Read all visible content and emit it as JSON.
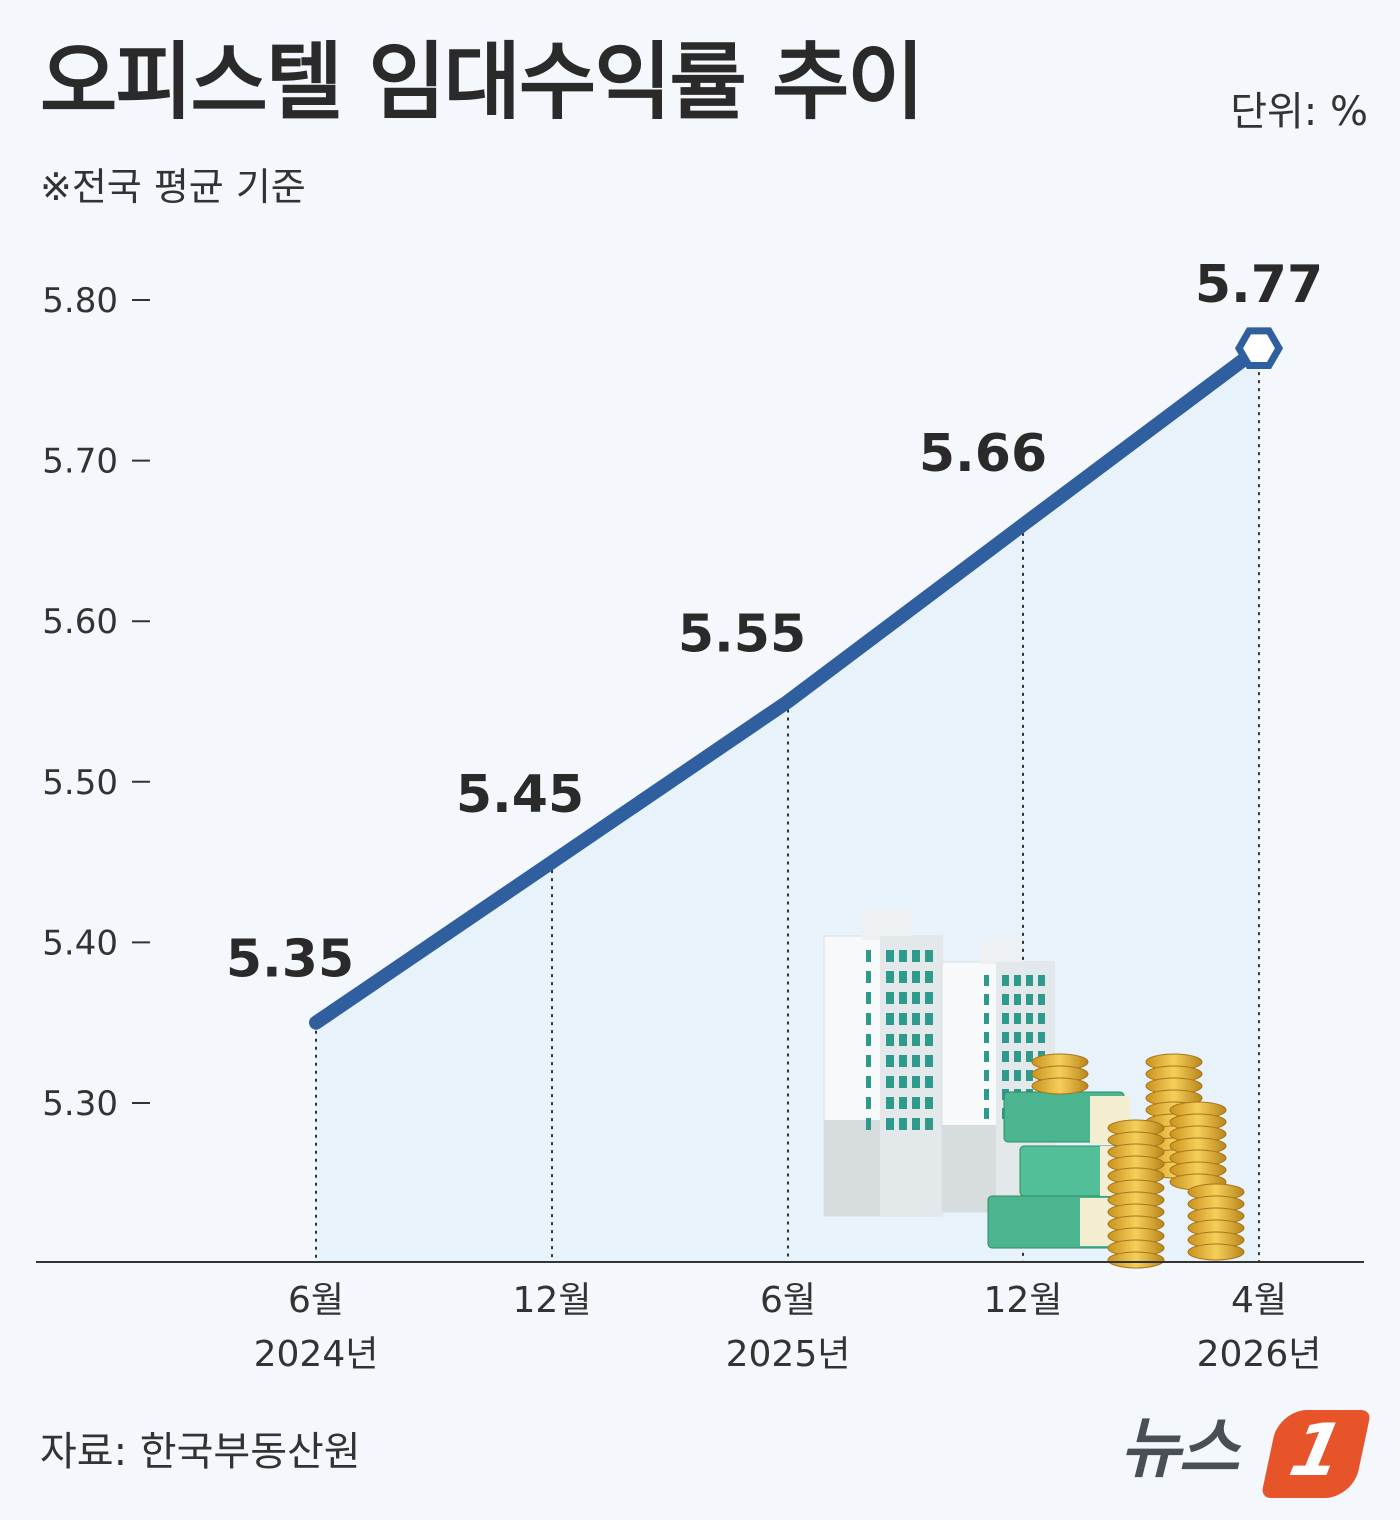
{
  "title": "오피스텔 임대수익률 추이",
  "subtitle": "※전국 평균 기준",
  "unit": "단위: %",
  "source": "자료: 한국부동산원",
  "logo": {
    "text": "뉴스",
    "badge": "1"
  },
  "colors": {
    "line": "#2f5f9f",
    "fill": "#e6f1fb",
    "background": "#f4f8fd",
    "axis": "#333333",
    "logo_accent": "#e8542a"
  },
  "chart_data": {
    "type": "line",
    "title": "오피스텔 임대수익률 추이",
    "subtitle": "※전국 평균 기준",
    "unit": "단위: %",
    "categories": [
      {
        "month": "6월",
        "year": "2024년"
      },
      {
        "month": "12월",
        "year": ""
      },
      {
        "month": "6월",
        "year": "2025년"
      },
      {
        "month": "12월",
        "year": ""
      },
      {
        "month": "4월",
        "year": "2026년"
      }
    ],
    "values": [
      5.35,
      5.45,
      5.55,
      5.66,
      5.77
    ],
    "value_labels": [
      "5.35",
      "5.45",
      "5.55",
      "5.66",
      "5.77"
    ],
    "yticks": [
      "5.30",
      "5.40",
      "5.50",
      "5.60",
      "5.70",
      "5.80"
    ],
    "ylim": [
      5.2,
      5.8
    ],
    "grid": false,
    "area_fill": true,
    "last_point_marker": "hexagon"
  }
}
